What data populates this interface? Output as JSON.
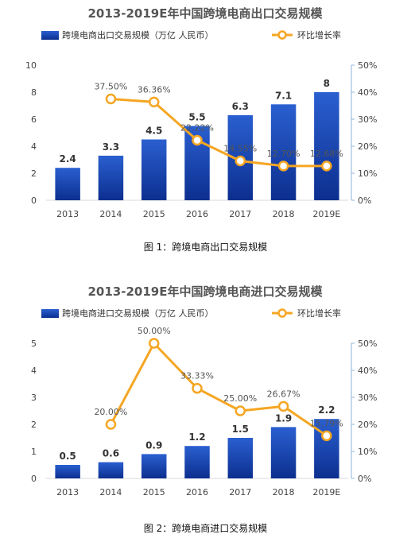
{
  "chart_data": [
    {
      "type": "bar+line",
      "title": "2013-2019E年中国跨境电商出口交易规模",
      "caption": "图 1：跨境电商出口交易规模",
      "categories": [
        "2013",
        "2014",
        "2015",
        "2016",
        "2017",
        "2018",
        "2019E"
      ],
      "series": [
        {
          "name": "跨境电商出口交易规模（万亿 人民币）",
          "type": "bar",
          "axis": "left",
          "values": [
            2.4,
            3.3,
            4.5,
            5.5,
            6.3,
            7.1,
            8
          ],
          "labels": [
            "2.4",
            "3.3",
            "4.5",
            "5.5",
            "6.3",
            "7.1",
            "8"
          ]
        },
        {
          "name": "环比增长率",
          "type": "line",
          "axis": "right",
          "values": [
            null,
            37.5,
            36.36,
            22.22,
            14.55,
            12.7,
            12.68
          ],
          "labels": [
            "",
            "37.50%",
            "36.36%",
            "22.22%",
            "14.55%",
            "12.70%",
            "12.68%"
          ]
        }
      ],
      "ylim": [
        0,
        10
      ],
      "yticks": [
        "0",
        "2",
        "4",
        "6",
        "8",
        "10"
      ],
      "y2lim": [
        0,
        50
      ],
      "y2ticks": [
        "0%",
        "10%",
        "20%",
        "30%",
        "40%",
        "50%"
      ],
      "legend": "top",
      "colors": {
        "bar_top": "#2a5fd0",
        "bar_bottom": "#0c2f8f",
        "line": "#f5a623"
      }
    },
    {
      "type": "bar+line",
      "title": "2013-2019E年中国跨境电商进口交易规模",
      "caption": "图 2：跨境电商进口交易规模",
      "categories": [
        "2013",
        "2014",
        "2015",
        "2016",
        "2017",
        "2018",
        "2019E"
      ],
      "series": [
        {
          "name": "跨境电商进口交易规模（万亿 人民币）",
          "type": "bar",
          "axis": "left",
          "values": [
            0.5,
            0.6,
            0.9,
            1.2,
            1.5,
            1.9,
            2.2
          ],
          "labels": [
            "0.5",
            "0.6",
            "0.9",
            "1.2",
            "1.5",
            "1.9",
            "2.2"
          ]
        },
        {
          "name": "环比增长率",
          "type": "line",
          "axis": "right",
          "values": [
            null,
            20.0,
            50.0,
            33.33,
            25.0,
            26.67,
            15.79
          ],
          "labels": [
            "",
            "20.00%",
            "50.00%",
            "33.33%",
            "25.00%",
            "26.67%",
            "15.79%"
          ]
        }
      ],
      "ylim": [
        0,
        5
      ],
      "yticks": [
        "0",
        "1",
        "2",
        "3",
        "4",
        "5"
      ],
      "y2lim": [
        0,
        50
      ],
      "y2ticks": [
        "0%",
        "10%",
        "20%",
        "30%",
        "40%",
        "50%"
      ],
      "legend": "top",
      "colors": {
        "bar_top": "#2a5fd0",
        "bar_bottom": "#0c2f8f",
        "line": "#f5a623"
      }
    }
  ]
}
